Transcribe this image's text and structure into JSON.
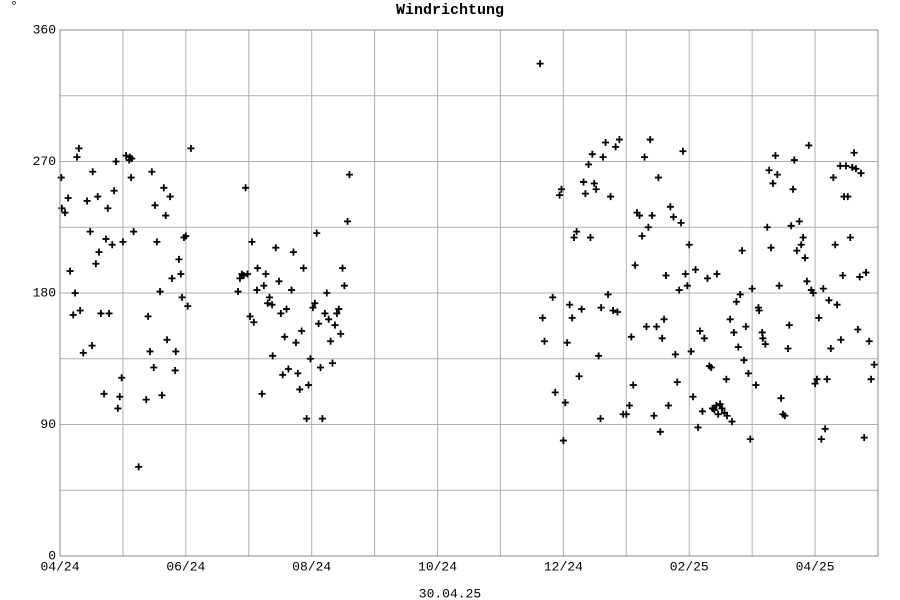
{
  "chart_data": {
    "type": "scatter",
    "title": "Windrichtung",
    "y_unit": "°",
    "footer": "30.04.25",
    "xlim": [
      0,
      13
    ],
    "ylim": [
      0,
      360
    ],
    "xticks": [
      {
        "value": 0,
        "label": "04/24"
      },
      {
        "value": 2,
        "label": "06/24"
      },
      {
        "value": 4,
        "label": "08/24"
      },
      {
        "value": 6,
        "label": "10/24"
      },
      {
        "value": 8,
        "label": "12/24"
      },
      {
        "value": 10,
        "label": "02/25"
      },
      {
        "value": 12,
        "label": "04/25"
      }
    ],
    "xminor": [
      1,
      3,
      5,
      7,
      9,
      11
    ],
    "yticks": [
      0,
      90,
      180,
      270,
      360
    ],
    "yminor": [
      45,
      135,
      225,
      315
    ],
    "grid": true,
    "marker": "+",
    "series": [
      {
        "color": "#000000",
        "x": [
          0.02,
          0.03,
          0.08,
          0.13,
          0.16,
          0.21,
          0.24,
          0.27,
          0.3,
          0.32,
          0.37,
          0.43,
          0.48,
          0.51,
          0.52,
          0.57,
          0.6,
          0.62,
          0.65,
          0.7,
          0.73,
          0.76,
          0.78,
          0.83,
          0.86,
          0.89,
          0.92,
          0.95,
          0.98,
          1.0,
          1.05,
          1.1,
          1.11,
          1.13,
          1.14,
          1.17,
          1.25,
          1.37,
          1.4,
          1.43,
          1.46,
          1.49,
          1.51,
          1.54,
          1.59,
          1.62,
          1.65,
          1.68,
          1.7,
          1.75,
          1.78,
          1.83,
          1.84,
          1.89,
          1.92,
          1.94,
          1.97,
          2.0,
          2.03,
          2.08,
          2.83,
          2.86,
          2.89,
          2.92,
          2.95,
          2.98,
          3.02,
          3.05,
          3.08,
          3.13,
          3.14,
          3.21,
          3.24,
          3.27,
          3.3,
          3.33,
          3.37,
          3.38,
          3.43,
          3.48,
          3.51,
          3.54,
          3.57,
          3.6,
          3.63,
          3.68,
          3.71,
          3.75,
          3.78,
          3.81,
          3.84,
          3.87,
          3.92,
          3.95,
          3.98,
          4.02,
          4.05,
          4.08,
          4.11,
          4.14,
          4.17,
          4.21,
          4.24,
          4.27,
          4.3,
          4.33,
          4.37,
          4.4,
          4.43,
          4.46,
          4.49,
          4.52,
          4.57,
          4.6,
          7.63,
          7.67,
          7.7,
          7.83,
          7.87,
          7.94,
          7.97,
          8.0,
          8.03,
          8.06,
          8.1,
          8.14,
          8.17,
          8.21,
          8.25,
          8.29,
          8.32,
          8.35,
          8.4,
          8.43,
          8.46,
          8.49,
          8.52,
          8.56,
          8.59,
          8.6,
          8.63,
          8.67,
          8.71,
          8.75,
          8.79,
          8.83,
          8.86,
          8.89,
          8.95,
          9.0,
          9.05,
          9.08,
          9.11,
          9.14,
          9.17,
          9.21,
          9.25,
          9.29,
          9.32,
          9.35,
          9.38,
          9.41,
          9.44,
          9.48,
          9.51,
          9.54,
          9.57,
          9.6,
          9.63,
          9.67,
          9.7,
          9.75,
          9.78,
          9.81,
          9.84,
          9.87,
          9.9,
          9.94,
          9.97,
          10.0,
          10.03,
          10.06,
          10.1,
          10.14,
          10.17,
          10.21,
          10.24,
          10.29,
          10.32,
          10.35,
          10.37,
          10.4,
          10.43,
          10.44,
          10.46,
          10.49,
          10.52,
          10.56,
          10.59,
          10.6,
          10.65,
          10.68,
          10.71,
          10.75,
          10.78,
          10.81,
          10.84,
          10.87,
          10.9,
          10.94,
          10.97,
          11.0,
          11.06,
          11.1,
          11.11,
          11.16,
          11.17,
          11.21,
          11.24,
          11.27,
          11.3,
          11.33,
          11.37,
          11.4,
          11.43,
          11.46,
          11.49,
          11.52,
          11.57,
          11.59,
          11.62,
          11.65,
          11.67,
          11.71,
          11.75,
          11.78,
          11.81,
          11.84,
          11.87,
          11.9,
          11.94,
          11.97,
          12.0,
          12.03,
          12.06,
          12.1,
          12.13,
          12.16,
          12.19,
          12.22,
          12.25,
          12.29,
          12.32,
          12.35,
          12.4,
          12.41,
          12.44,
          12.46,
          12.49,
          12.52,
          12.56,
          12.59,
          12.62,
          12.65,
          12.68,
          12.71,
          12.73,
          12.78,
          12.81,
          12.86,
          12.89,
          12.94
        ],
        "values": [
          259,
          238,
          235,
          245,
          195,
          165,
          180,
          273,
          279,
          168,
          139,
          243,
          222,
          144,
          263,
          200,
          246,
          208,
          166,
          111,
          217,
          238,
          166,
          213,
          250,
          270,
          101,
          109,
          122,
          215,
          274,
          271,
          273,
          259,
          272,
          222,
          61,
          107,
          164,
          140,
          263,
          129,
          240,
          215,
          181,
          110,
          252,
          233,
          148,
          246,
          190,
          127,
          140,
          203,
          193,
          177,
          218,
          219,
          171,
          279,
          181,
          190,
          193,
          192,
          252,
          193,
          164,
          215,
          160,
          182,
          197,
          111,
          185,
          193,
          173,
          177,
          172,
          137,
          211,
          188,
          166,
          124,
          150,
          169,
          128,
          182,
          208,
          146,
          125,
          114,
          154,
          197,
          94,
          117,
          135,
          170,
          173,
          221,
          159,
          129,
          94,
          166,
          180,
          162,
          147,
          132,
          158,
          166,
          169,
          152,
          197,
          185,
          229,
          261,
          337,
          163,
          147,
          177,
          112,
          247,
          251,
          79,
          105,
          146,
          172,
          163,
          218,
          222,
          123,
          169,
          256,
          248,
          268,
          218,
          275,
          255,
          251,
          137,
          94,
          170,
          273,
          283,
          179,
          246,
          168,
          280,
          167,
          285,
          97,
          97,
          103,
          150,
          117,
          199,
          235,
          233,
          219,
          273,
          157,
          225,
          285,
          233,
          96,
          157,
          259,
          85,
          149,
          162,
          192,
          103,
          239,
          232,
          138,
          119,
          182,
          228,
          277,
          193,
          185,
          213,
          140,
          109,
          196,
          88,
          154,
          99,
          149,
          190,
          130,
          129,
          101,
          100,
          103,
          193,
          97,
          104,
          101,
          98,
          121,
          96,
          162,
          92,
          153,
          174,
          143,
          179,
          209,
          134,
          157,
          125,
          80,
          183,
          117,
          170,
          168,
          153,
          149,
          145,
          225,
          264,
          211,
          255,
          274,
          261,
          185,
          108,
          97,
          96,
          142,
          158,
          226,
          251,
          271,
          209,
          229,
          213,
          218,
          204,
          188,
          281,
          182,
          180,
          118,
          121,
          163,
          80,
          183,
          87,
          121,
          175,
          142,
          259,
          213,
          172,
          267,
          148,
          192,
          246,
          267,
          246,
          218,
          266,
          276,
          265,
          155,
          191,
          262,
          81,
          194,
          147,
          121,
          131
        ]
      }
    ]
  }
}
